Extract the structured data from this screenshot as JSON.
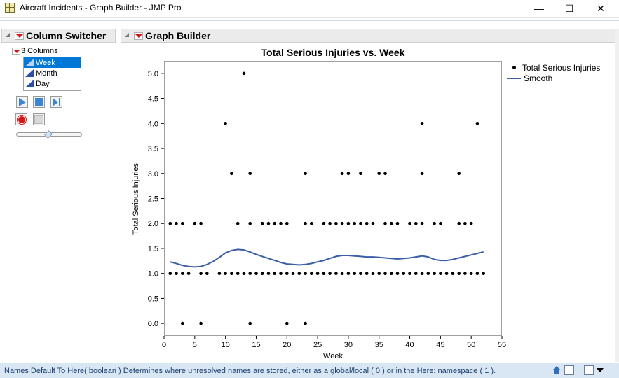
{
  "window": {
    "title": "Aircraft Incidents - Graph Builder - JMP Pro",
    "minimize_glyph": "—",
    "maximize_glyph": "☐",
    "close_glyph": "✕"
  },
  "column_switcher": {
    "title": "Column Switcher",
    "count_label": "3 Columns",
    "columns": [
      "Week",
      "Month",
      "Day"
    ],
    "selected": "Week",
    "slider_value": 0.5
  },
  "graph_builder": {
    "title": "Graph Builder"
  },
  "legend": {
    "items": [
      "Total Serious Injuries",
      "Smooth"
    ]
  },
  "status": {
    "text": "Names Default To Here( boolean )  Determines where unresolved names are stored, either as a global/local ( 0 ) or in the Here: namespace ( 1 )."
  },
  "colors": {
    "points": "#000000",
    "smooth": "#3b5ea6",
    "selection": "#0078d7",
    "red_triangle": "#d01818"
  },
  "chart_data": {
    "type": "scatter",
    "title": "Total Serious Injuries vs. Week",
    "xlabel": "Week",
    "ylabel": "Total Serious Injuries",
    "xlim": [
      0,
      55
    ],
    "ylim": [
      -0.25,
      5.25
    ],
    "xticks": [
      0,
      5,
      10,
      15,
      20,
      25,
      30,
      35,
      40,
      45,
      50,
      55
    ],
    "yticks": [
      0.0,
      0.5,
      1.0,
      1.5,
      2.0,
      2.5,
      3.0,
      3.5,
      4.0,
      4.5,
      5.0
    ],
    "grid": false,
    "legend_position": "right",
    "series": [
      {
        "name": "Total Serious Injuries",
        "points": [
          [
            1,
            1
          ],
          [
            2,
            1
          ],
          [
            3,
            1
          ],
          [
            4,
            1
          ],
          [
            6,
            1
          ],
          [
            7,
            1
          ],
          [
            9,
            1
          ],
          [
            10,
            1
          ],
          [
            11,
            1
          ],
          [
            12,
            1
          ],
          [
            13,
            1
          ],
          [
            14,
            1
          ],
          [
            15,
            1
          ],
          [
            16,
            1
          ],
          [
            17,
            1
          ],
          [
            18,
            1
          ],
          [
            19,
            1
          ],
          [
            20,
            1
          ],
          [
            21,
            1
          ],
          [
            22,
            1
          ],
          [
            23,
            1
          ],
          [
            24,
            1
          ],
          [
            25,
            1
          ],
          [
            26,
            1
          ],
          [
            27,
            1
          ],
          [
            28,
            1
          ],
          [
            29,
            1
          ],
          [
            30,
            1
          ],
          [
            31,
            1
          ],
          [
            32,
            1
          ],
          [
            33,
            1
          ],
          [
            34,
            1
          ],
          [
            35,
            1
          ],
          [
            36,
            1
          ],
          [
            37,
            1
          ],
          [
            38,
            1
          ],
          [
            39,
            1
          ],
          [
            40,
            1
          ],
          [
            41,
            1
          ],
          [
            42,
            1
          ],
          [
            43,
            1
          ],
          [
            44,
            1
          ],
          [
            45,
            1
          ],
          [
            46,
            1
          ],
          [
            47,
            1
          ],
          [
            48,
            1
          ],
          [
            49,
            1
          ],
          [
            50,
            1
          ],
          [
            51,
            1
          ],
          [
            52,
            1
          ],
          [
            1,
            2
          ],
          [
            2,
            2
          ],
          [
            3,
            2
          ],
          [
            5,
            2
          ],
          [
            6,
            2
          ],
          [
            12,
            2
          ],
          [
            14,
            2
          ],
          [
            16,
            2
          ],
          [
            17,
            2
          ],
          [
            18,
            2
          ],
          [
            19,
            2
          ],
          [
            20,
            2
          ],
          [
            23,
            2
          ],
          [
            24,
            2
          ],
          [
            26,
            2
          ],
          [
            27,
            2
          ],
          [
            28,
            2
          ],
          [
            29,
            2
          ],
          [
            30,
            2
          ],
          [
            31,
            2
          ],
          [
            32,
            2
          ],
          [
            33,
            2
          ],
          [
            34,
            2
          ],
          [
            36,
            2
          ],
          [
            37,
            2
          ],
          [
            38,
            2
          ],
          [
            40,
            2
          ],
          [
            41,
            2
          ],
          [
            42,
            2
          ],
          [
            44,
            2
          ],
          [
            45,
            2
          ],
          [
            48,
            2
          ],
          [
            49,
            2
          ],
          [
            50,
            2
          ],
          [
            11,
            3
          ],
          [
            14,
            3
          ],
          [
            23,
            3
          ],
          [
            29,
            3
          ],
          [
            30,
            3
          ],
          [
            32,
            3
          ],
          [
            35,
            3
          ],
          [
            36,
            3
          ],
          [
            42,
            3
          ],
          [
            48,
            3
          ],
          [
            10,
            4
          ],
          [
            42,
            4
          ],
          [
            51,
            4
          ],
          [
            13,
            5
          ],
          [
            3,
            0
          ],
          [
            6,
            0
          ],
          [
            14,
            0
          ],
          [
            20,
            0
          ],
          [
            23,
            0
          ]
        ]
      },
      {
        "name": "Smooth",
        "points": [
          [
            1,
            1.23
          ],
          [
            2,
            1.2
          ],
          [
            3,
            1.16
          ],
          [
            4,
            1.14
          ],
          [
            5,
            1.13
          ],
          [
            6,
            1.14
          ],
          [
            7,
            1.18
          ],
          [
            8,
            1.24
          ],
          [
            9,
            1.32
          ],
          [
            10,
            1.41
          ],
          [
            11,
            1.46
          ],
          [
            12,
            1.48
          ],
          [
            13,
            1.47
          ],
          [
            14,
            1.43
          ],
          [
            15,
            1.38
          ],
          [
            16,
            1.34
          ],
          [
            17,
            1.3
          ],
          [
            18,
            1.26
          ],
          [
            19,
            1.22
          ],
          [
            20,
            1.19
          ],
          [
            21,
            1.18
          ],
          [
            22,
            1.17
          ],
          [
            23,
            1.18
          ],
          [
            24,
            1.2
          ],
          [
            25,
            1.23
          ],
          [
            26,
            1.26
          ],
          [
            27,
            1.3
          ],
          [
            28,
            1.34
          ],
          [
            29,
            1.36
          ],
          [
            30,
            1.36
          ],
          [
            31,
            1.35
          ],
          [
            32,
            1.34
          ],
          [
            33,
            1.33
          ],
          [
            34,
            1.33
          ],
          [
            35,
            1.32
          ],
          [
            36,
            1.31
          ],
          [
            37,
            1.3
          ],
          [
            38,
            1.29
          ],
          [
            39,
            1.3
          ],
          [
            40,
            1.31
          ],
          [
            41,
            1.33
          ],
          [
            42,
            1.35
          ],
          [
            43,
            1.33
          ],
          [
            44,
            1.28
          ],
          [
            45,
            1.26
          ],
          [
            46,
            1.26
          ],
          [
            47,
            1.28
          ],
          [
            48,
            1.31
          ],
          [
            49,
            1.34
          ],
          [
            50,
            1.37
          ],
          [
            51,
            1.4
          ],
          [
            52,
            1.43
          ]
        ]
      }
    ]
  }
}
